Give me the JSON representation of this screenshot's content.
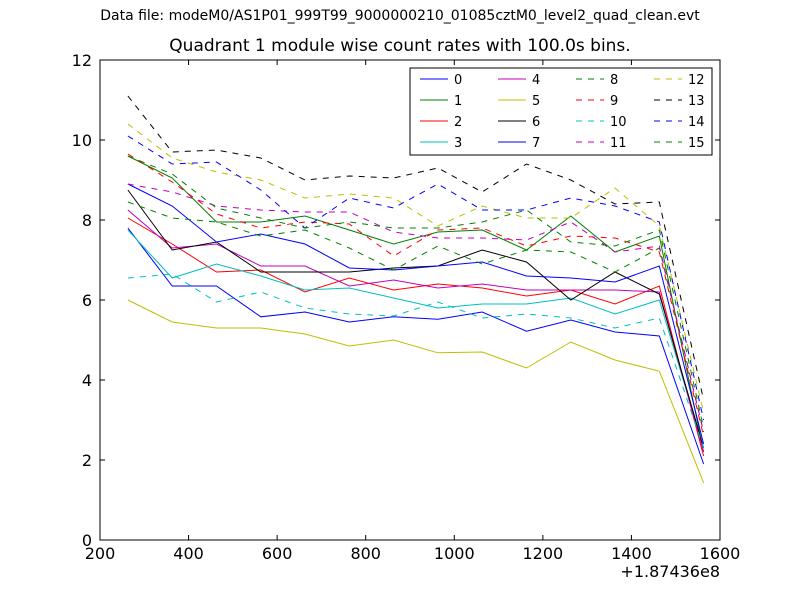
{
  "suptitle": "Data file: modeM0/AS1P01_999T99_9000000210_01085cztM0_level2_quad_clean.evt",
  "chart_data": {
    "type": "line",
    "title": "Quadrant 1 module wise count rates with 100.0s bins.",
    "xlabel": "",
    "ylabel": "",
    "x_offset_label": "+1.87436e8",
    "xlim": [
      200,
      1600
    ],
    "ylim": [
      0,
      12
    ],
    "xticks": [
      200,
      400,
      600,
      800,
      1000,
      1200,
      1400,
      1600
    ],
    "yticks": [
      0,
      2,
      4,
      6,
      8,
      10,
      12
    ],
    "grid": false,
    "legend_placement": "top-right",
    "legend_columns": 4,
    "x": [
      263,
      363,
      463,
      563,
      663,
      763,
      863,
      963,
      1063,
      1163,
      1263,
      1363,
      1463,
      1563
    ],
    "series": [
      {
        "name": "0",
        "color": "#0000ff",
        "dash": false,
        "values": [
          7.8,
          6.35,
          6.35,
          5.58,
          5.7,
          5.45,
          5.58,
          5.52,
          5.7,
          5.22,
          5.5,
          5.2,
          5.1,
          1.9
        ]
      },
      {
        "name": "1",
        "color": "#008000",
        "dash": false,
        "values": [
          9.6,
          9.05,
          7.95,
          7.95,
          8.1,
          7.75,
          7.4,
          7.7,
          7.75,
          7.25,
          8.1,
          7.2,
          7.6,
          2.2
        ]
      },
      {
        "name": "2",
        "color": "#ff0000",
        "dash": false,
        "values": [
          8.05,
          7.4,
          6.7,
          6.75,
          6.2,
          6.55,
          6.25,
          6.4,
          6.3,
          6.1,
          6.25,
          5.9,
          6.35,
          2.1
        ]
      },
      {
        "name": "3",
        "color": "#00bfbf",
        "dash": false,
        "values": [
          7.75,
          6.55,
          6.9,
          6.6,
          6.25,
          6.3,
          6.05,
          5.8,
          5.9,
          5.9,
          6.05,
          5.65,
          6.0,
          2.3
        ]
      },
      {
        "name": "4",
        "color": "#bf00bf",
        "dash": false,
        "values": [
          8.25,
          7.3,
          7.4,
          6.85,
          6.85,
          6.35,
          6.5,
          6.3,
          6.4,
          6.25,
          6.25,
          6.25,
          6.2,
          2.2
        ]
      },
      {
        "name": "5",
        "color": "#bfbf00",
        "dash": false,
        "values": [
          6.0,
          5.45,
          5.3,
          5.3,
          5.15,
          4.85,
          5.0,
          4.68,
          4.7,
          4.3,
          4.95,
          4.5,
          4.22,
          1.43
        ]
      },
      {
        "name": "6",
        "color": "#000000",
        "dash": false,
        "values": [
          8.75,
          7.25,
          7.45,
          6.7,
          6.7,
          6.7,
          6.8,
          6.85,
          7.25,
          6.95,
          6.0,
          6.7,
          6.15,
          2.3
        ]
      },
      {
        "name": "7",
        "color": "#0000ff",
        "dash": false,
        "values": [
          8.9,
          8.35,
          7.45,
          7.65,
          7.4,
          6.8,
          6.75,
          6.85,
          6.95,
          6.6,
          6.55,
          6.45,
          6.85,
          2.4
        ]
      },
      {
        "name": "8",
        "color": "#008000",
        "dash": true,
        "values": [
          8.45,
          8.05,
          7.95,
          7.6,
          7.75,
          7.3,
          6.75,
          7.35,
          6.9,
          7.25,
          7.2,
          6.7,
          7.3,
          2.7
        ]
      },
      {
        "name": "9",
        "color": "#ff0000",
        "dash": true,
        "values": [
          9.65,
          8.95,
          8.15,
          7.8,
          7.95,
          7.9,
          7.1,
          7.75,
          7.8,
          7.35,
          7.6,
          7.55,
          7.2,
          2.6
        ]
      },
      {
        "name": "10",
        "color": "#00bfbf",
        "dash": true,
        "values": [
          6.55,
          6.65,
          5.95,
          6.2,
          5.8,
          5.65,
          5.6,
          5.95,
          5.55,
          5.65,
          5.55,
          5.3,
          5.55,
          2.3
        ]
      },
      {
        "name": "11",
        "color": "#bf00bf",
        "dash": true,
        "values": [
          8.9,
          8.7,
          8.35,
          8.25,
          8.2,
          8.2,
          7.7,
          7.55,
          7.55,
          7.5,
          7.95,
          7.2,
          7.35,
          2.7
        ]
      },
      {
        "name": "12",
        "color": "#bfbf00",
        "dash": true,
        "values": [
          10.4,
          9.55,
          9.2,
          9.0,
          8.55,
          8.65,
          8.55,
          7.85,
          8.35,
          8.05,
          8.05,
          8.8,
          7.85,
          3.2
        ]
      },
      {
        "name": "13",
        "color": "#000000",
        "dash": true,
        "values": [
          11.1,
          9.7,
          9.75,
          9.55,
          9.0,
          9.1,
          9.05,
          9.3,
          8.7,
          9.4,
          9.0,
          8.4,
          8.45,
          3.5
        ]
      },
      {
        "name": "14",
        "color": "#0000ff",
        "dash": true,
        "values": [
          10.1,
          9.4,
          9.45,
          8.75,
          7.8,
          8.55,
          8.3,
          8.9,
          8.25,
          8.25,
          8.55,
          8.35,
          7.95,
          3.0
        ]
      },
      {
        "name": "15",
        "color": "#008000",
        "dash": true,
        "values": [
          9.6,
          9.15,
          8.3,
          8.05,
          7.8,
          7.95,
          7.8,
          7.8,
          7.95,
          8.25,
          7.45,
          7.35,
          7.75,
          2.8
        ]
      }
    ]
  }
}
